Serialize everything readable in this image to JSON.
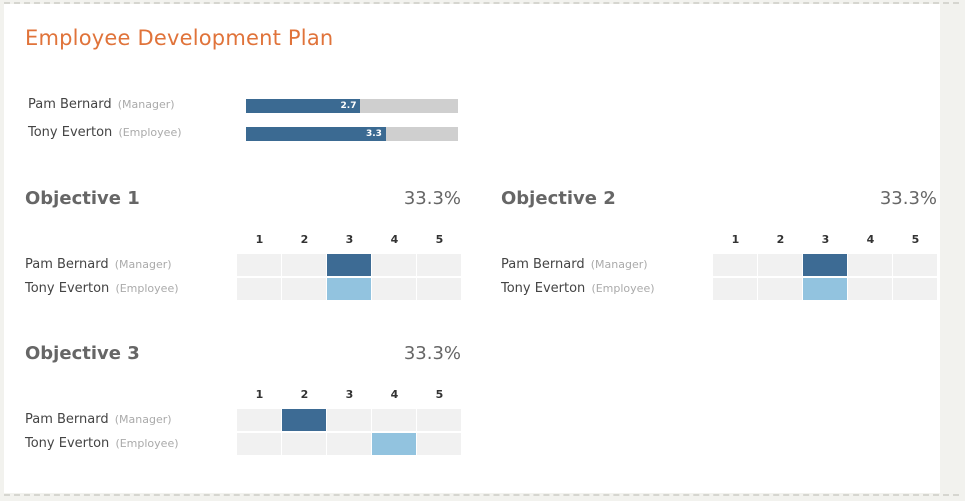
{
  "title": "Employee Development Plan",
  "summary": [
    {
      "name": "Pam Bernard",
      "role": "(Manager)",
      "score": "2.7",
      "fraction": 0.54
    },
    {
      "name": "Tony Everton",
      "role": "(Employee)",
      "score": "3.3",
      "fraction": 0.66
    }
  ],
  "scale_labels": [
    "1",
    "2",
    "3",
    "4",
    "5"
  ],
  "objectives": [
    {
      "title": "Objective 1",
      "percent": "33.3%",
      "rows": [
        {
          "name": "Pam Bernard",
          "role": "(Manager)",
          "rating": 3
        },
        {
          "name": "Tony Everton",
          "role": "(Employee)",
          "rating": 3
        }
      ]
    },
    {
      "title": "Objective 2",
      "percent": "33.3%",
      "rows": [
        {
          "name": "Pam Bernard",
          "role": "(Manager)",
          "rating": 3
        },
        {
          "name": "Tony Everton",
          "role": "(Employee)",
          "rating": 3
        }
      ]
    },
    {
      "title": "Objective 3",
      "percent": "33.3%",
      "rows": [
        {
          "name": "Pam Bernard",
          "role": "(Manager)",
          "rating": 2
        },
        {
          "name": "Tony Everton",
          "role": "(Employee)",
          "rating": 4
        }
      ]
    }
  ],
  "colors": {
    "title": "#e0733a",
    "manager_selected": "#3d6b94",
    "employee_selected": "#92c3df",
    "bar_fill": "#3b6a92",
    "bar_track": "#cfcfcf"
  }
}
